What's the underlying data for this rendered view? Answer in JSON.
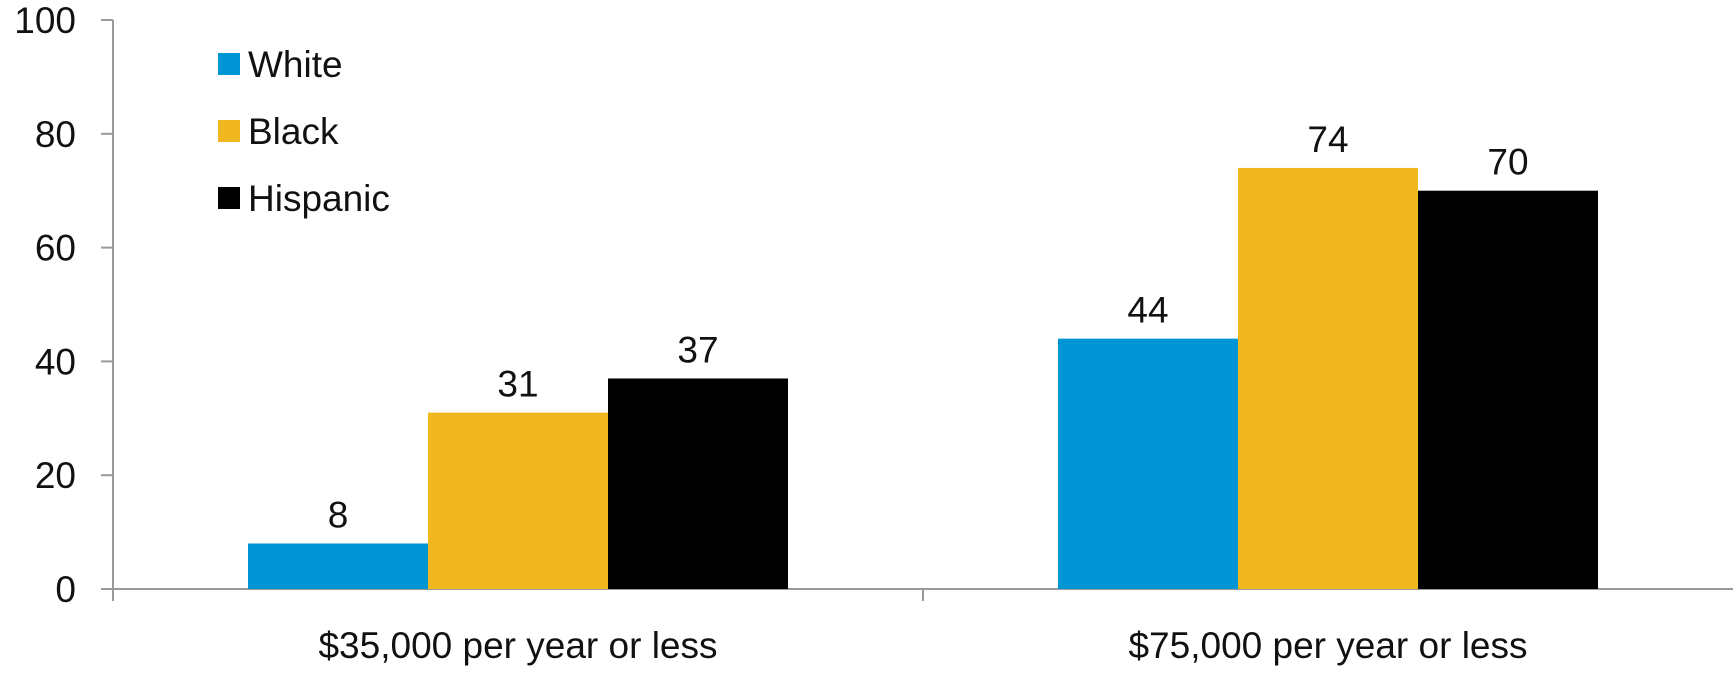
{
  "chart_data": {
    "type": "bar",
    "title": "",
    "xlabel": "",
    "ylabel": "",
    "categories": [
      "$35,000 per year or less",
      "$75,000 per year or less"
    ],
    "series": [
      {
        "name": "White",
        "values": [
          8,
          44
        ],
        "labels": [
          "8",
          "44"
        ],
        "color": "#0096D6"
      },
      {
        "name": "Black",
        "values": [
          31,
          74
        ],
        "labels": [
          "31",
          "74"
        ],
        "color": "#F0B81E"
      },
      {
        "name": "Hispanic",
        "values": [
          37,
          70
        ],
        "labels": [
          "37",
          "70"
        ],
        "color": "#000000"
      }
    ],
    "ylim": [
      0,
      100
    ],
    "yticks": [
      "0",
      "20",
      "40",
      "60",
      "80",
      "100"
    ],
    "grid": false,
    "legend_position": "top-left"
  }
}
